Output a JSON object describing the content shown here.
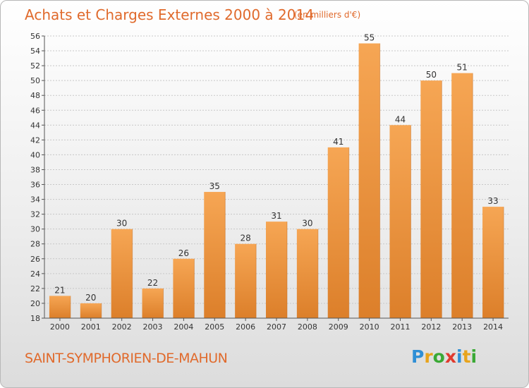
{
  "title": "Achats et Charges Externes 2000 à 2014",
  "subtitle": "(en milliers d'€)",
  "commune": "SAINT-SYMPHORIEN-DE-MAHUN",
  "logo": {
    "letters": [
      "P",
      "r",
      "o",
      "x",
      "i",
      "t",
      "i"
    ],
    "colors": [
      "#2f8fd5",
      "#e8a41c",
      "#3aa935",
      "#e03a2e",
      "#2f8fd5",
      "#e8a41c",
      "#3aa935"
    ]
  },
  "colors": {
    "bar_light": "#f6a654",
    "bar_dark": "#dc7f2a",
    "axis": "#555555",
    "grid": "#c8c8c8",
    "text": "#333333"
  },
  "chart_data": {
    "type": "bar",
    "title": "Achats et Charges Externes 2000 à 2014",
    "subtitle": "(en milliers d'€)",
    "categories": [
      "2000",
      "2001",
      "2002",
      "2003",
      "2004",
      "2005",
      "2006",
      "2007",
      "2008",
      "2009",
      "2010",
      "2011",
      "2012",
      "2013",
      "2014"
    ],
    "values": [
      21,
      20,
      30,
      22,
      26,
      35,
      28,
      31,
      30,
      41,
      55,
      44,
      50,
      51,
      33
    ],
    "ylim": [
      18,
      56
    ],
    "yticks": [
      "18",
      "20",
      "22",
      "24",
      "26",
      "28",
      "30",
      "32",
      "34",
      "36",
      "38",
      "40",
      "42",
      "44",
      "46",
      "48",
      "50",
      "52",
      "54",
      "56"
    ],
    "grid": true,
    "data_labels": true
  }
}
